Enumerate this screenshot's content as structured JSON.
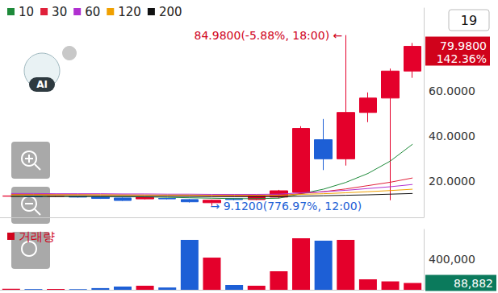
{
  "chart_data": [
    {
      "type": "candlestick",
      "categories": [
        null,
        null,
        null,
        null,
        null,
        null,
        null,
        null,
        null,
        null,
        null,
        null,
        null,
        null,
        null,
        null,
        null,
        null,
        null
      ],
      "series": [
        {
          "type": "candlestick",
          "open": [
            13.4,
            13.4,
            13.3,
            13.2,
            13.0,
            12.6,
            12.2,
            12.4,
            11.9,
            10.5,
            12.3,
            11.9,
            13.0,
            15.1,
            38.5,
            30.0,
            50.6,
            57.0,
            69.0
          ],
          "close": [
            13.5,
            13.2,
            13.5,
            13.0,
            12.4,
            11.5,
            12.9,
            12.2,
            10.9,
            11.6,
            11.9,
            13.7,
            15.8,
            43.5,
            30.0,
            50.6,
            57.0,
            69.0,
            79.98
          ],
          "low": [
            13.2,
            13.0,
            13.1,
            12.8,
            12.2,
            11.3,
            12.0,
            12.0,
            10.6,
            9.12,
            11.6,
            11.7,
            12.5,
            14.0,
            25.0,
            27.0,
            46.3,
            11.6,
            66.0
          ],
          "high": [
            13.7,
            13.6,
            13.7,
            13.4,
            13.2,
            12.8,
            13.1,
            12.6,
            12.1,
            11.9,
            12.5,
            14.0,
            16.2,
            44.5,
            47.7,
            84.98,
            59.5,
            70.1,
            81.5
          ]
        },
        {
          "name": "10",
          "type": "line",
          "color": "#1e8a3a",
          "values": [
            13.5,
            13.5,
            13.4,
            13.4,
            13.3,
            13.2,
            13.1,
            12.9,
            12.7,
            12.5,
            12.3,
            12.3,
            12.5,
            14.5,
            16.5,
            19.5,
            23.5,
            29.0,
            36.5
          ]
        },
        {
          "name": "30",
          "type": "line",
          "color": "#e0203a",
          "values": [
            14.2,
            14.2,
            14.1,
            14.1,
            14.0,
            14.0,
            13.9,
            13.8,
            13.7,
            13.6,
            13.5,
            13.5,
            13.6,
            14.6,
            15.4,
            16.6,
            18.1,
            19.6,
            21.5
          ]
        },
        {
          "name": "60",
          "type": "line",
          "color": "#b030d0",
          "values": [
            14.6,
            14.6,
            14.5,
            14.5,
            14.5,
            14.4,
            14.4,
            14.3,
            14.3,
            14.2,
            14.2,
            14.2,
            14.3,
            14.9,
            15.4,
            16.0,
            16.8,
            17.6,
            18.6
          ]
        },
        {
          "name": "120",
          "type": "line",
          "color": "#f0a000",
          "values": [
            14.0,
            14.0,
            14.0,
            14.0,
            14.0,
            13.9,
            13.9,
            13.9,
            13.9,
            13.8,
            13.8,
            13.8,
            13.8,
            14.2,
            14.5,
            14.9,
            15.4,
            15.9,
            16.5
          ]
        },
        {
          "name": "200",
          "type": "line",
          "color": "#111111",
          "values": [
            13.3,
            13.3,
            13.3,
            13.3,
            13.3,
            13.3,
            13.3,
            13.3,
            13.3,
            13.2,
            13.2,
            13.2,
            13.2,
            13.4,
            13.6,
            13.8,
            14.0,
            14.3,
            14.6
          ]
        }
      ],
      "ylim": [
        4,
        97
      ],
      "yticks": [
        {
          "value": 20,
          "label": "20.0000"
        },
        {
          "value": 40,
          "label": "40.0000"
        },
        {
          "value": 60,
          "label": "60.0000"
        }
      ],
      "grid": false,
      "tick_labels": "y",
      "legend": "top-left",
      "annotations": [
        {
          "text": "84.9800(-5.88%, 18:00) ←",
          "index": 15,
          "value": 84.98,
          "color": "#d0021b"
        },
        {
          "text": "→ 9.1200(776.97%, 12:00)",
          "index": 9,
          "value": 9.12,
          "color": "#1d5fd6"
        }
      ],
      "price_tag": {
        "value": 79.98,
        "label": "79.9800",
        "change": "142.36%",
        "color": "#d0021b"
      }
    },
    {
      "type": "bar",
      "categories": [
        null,
        null,
        null,
        null,
        null,
        null,
        null,
        null,
        null,
        null,
        null,
        null,
        null,
        null,
        null,
        null,
        null,
        null,
        null
      ],
      "series": [
        {
          "name": "거래량",
          "color": "#d0021b",
          "values": [
            12000,
            9000,
            10000,
            8000,
            22000,
            42000,
            53000,
            30000,
            653000,
            421000,
            63000,
            53000,
            242000,
            674000,
            642000,
            653000,
            137000,
            110000,
            88882
          ]
        }
      ],
      "ylim": [
        0,
        790000
      ],
      "yticks": [
        {
          "value": 400000,
          "label": "400,000"
        }
      ],
      "grid": false,
      "tick_labels": "y",
      "legend": "top-left",
      "value_tag": {
        "value": 88882,
        "label": "88,882",
        "color": "#0b7a5c"
      }
    }
  ],
  "ui": {
    "badge": "AI",
    "period": "19"
  }
}
